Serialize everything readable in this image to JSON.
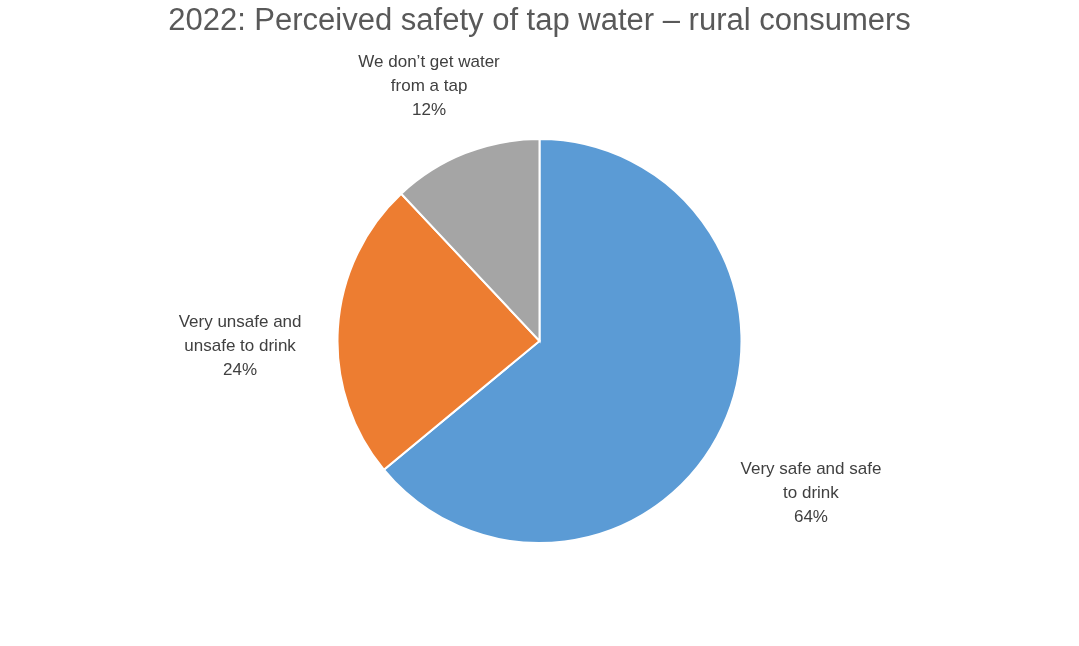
{
  "chart_data": {
    "type": "pie",
    "title": "2022: Perceived safety of tap water – rural consumers",
    "categories": [
      "Very safe and safe to drink",
      "Very unsafe and unsafe to drink",
      "We don’t get water from a tap"
    ],
    "values": [
      64,
      24,
      12
    ],
    "colors": [
      "#5b9bd5",
      "#ed7d31",
      "#a5a5a5"
    ],
    "value_labels": [
      "64%",
      "24%",
      "12%"
    ]
  }
}
